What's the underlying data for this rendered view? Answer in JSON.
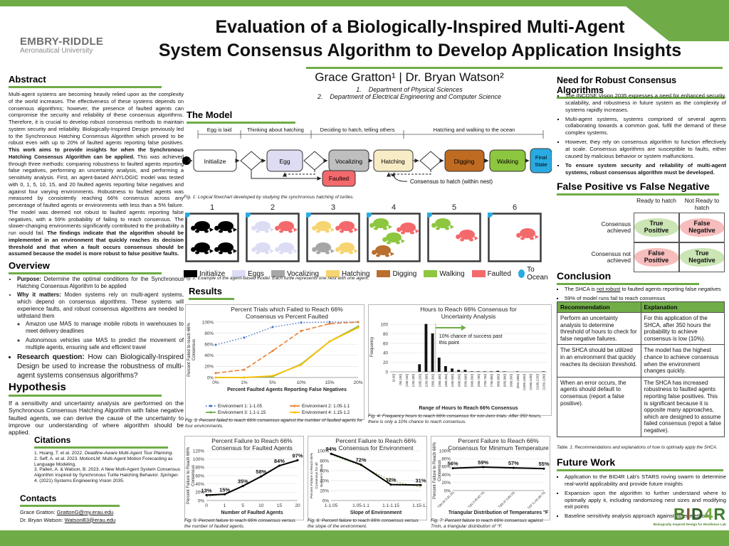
{
  "colors": {
    "accent_green": "#6fac47",
    "table_header_green": "#70ad47",
    "faulted_red": "#f4696b",
    "ocean_blue": "#29abe2"
  },
  "poster": {
    "org_line1": "EMBRY-RIDDLE",
    "org_line2": "Aeronautical University",
    "title_line1": "Evaluation of a Biologically-Inspired Multi-Agent",
    "title_line2": "System Consensus Algorithm to Develop Application Insights",
    "authors": "Grace Gratton¹ | Dr. Bryan Watson²",
    "affil1": "1.    Department of Physical Sciences",
    "affil2": "2.    Department of Electrical Engineering and Computer Science"
  },
  "abstract": {
    "heading": "Abstract",
    "p1": "Multi-agent systems are becoming heavily relied upon as the complexity of the world increases. The effectiveness of these systems depends on consensus algorithms; however, the presence of faulted agents can compromise the security and reliability of these consensus algorithms. Therefore, it is crucial to develop robust consensus methods to maintain system security and reliability. Biologically-Inspired Design previously led to the Synchronous Hatching Consensus Algorithm which proved to be robust even with up to 20% of faulted agents reporting false positives. ",
    "b1": "This work aims to provide insights for when the Synchronous Hatching Consensus Algorithm can be applied.",
    "p2": " This was achieved through three methods: comparing robustness to faulted agents reporting false negatives, performing an uncertainty analysis, and performing a sensitivity analysis. First, an agent-based ANYLOGIC model was tested with 0, 1, 5, 10, 15, and 20 faulted agents reporting false negatives and against four varying environments. Robustness to faulted agents was measured by consistently reaching 66% consensus across any percentage of faulted agents or environments with less than a 5% failure. The model was deemed not robust to faulted agents reporting false negatives, with a 59% probability of failing to reach consensus. The slower-changing environments significantly contributed to the probability a run would fail. ",
    "b2": "The findings indicate that the algorithm should be implemented in an environment that quickly reaches its decision threshold and that when a fault occurs consensus should be assumed because the model is more robust to false positive faults."
  },
  "overview": {
    "heading": "Overview",
    "bullets": [
      {
        "bold": "Purpose:",
        "rest": " Determine the optimal conditions for the Synchronous Hatching Consensus Algorithm to be applied"
      },
      {
        "bold": "Why it matters:",
        "rest": " Moden systems rely on multi-agent systems, which depend on consensus algorithms. These systems will experience faults, and robust consensus algorithms are needed to withstand them"
      }
    ],
    "subbullets": [
      "Amazon use MAS to manage mobile robots in warehouses to meet delivery deadlines",
      "Autonomous vehicles use MAS to predict the movement of multiple agents, ensuring safe and efficient travel"
    ],
    "research_bold": "Research question:",
    "research_rest": " How can Biologically-Inspired Design be used to increase the robustness of multi-agent systems consensus algorithms?"
  },
  "hypothesis": {
    "heading": "Hypothesis",
    "body": "If a sensitivity and uncertainty analysis are performed on the Synchronous Consensus Hatching Algorithm with false negative faulted agents, we can derive the cause of the uncertainty to improve our understanding of where algorithm should be applied."
  },
  "citations": {
    "heading": "Citations",
    "items": [
      {
        "pre": "1. Huang, T. et al. 2022. ",
        "it": "Deadline-Aware Multi-Agent Tour Planning."
      },
      {
        "pre": "2. Seff, A. et al. 2023. MotionLM: Multi-Agent Motion Forecasting as Language Modeling.",
        "it": ""
      },
      {
        "pre": "3. Pallen, A. & Watson, B. 2023. A New Multi-Agent System Consensus Algorithm Inspired by Synchronous Turtle Hatching Behavior. ",
        "it": "Springer."
      },
      {
        "pre": "4. (2021) Systems Engineering Vision 2035.",
        "it": ""
      }
    ]
  },
  "contacts": {
    "heading": "Contacts",
    "label1": "Grace Gratton: ",
    "email1": "GrattonG@my.erau.edu",
    "label2": "Dr. Bryan Watson: ",
    "email2": "WatsonB3@erau.edu"
  },
  "model": {
    "heading": "The Model",
    "phases": [
      "Egg is laid",
      "Thinking about hatching",
      "Deciding to hatch, telling others",
      "Hatching and walking to the ocean"
    ],
    "states": {
      "initialize": "Initialize",
      "egg": "Egg",
      "vocalizing": "Vocalizing",
      "hatching": "Hatching",
      "digging": "Digging",
      "walking": "Walking",
      "final1": "Final",
      "final2": "State",
      "faulted": "Faulted"
    },
    "note": "Consensus to hatch (within nest)",
    "caption": "Fig. 1: Logical flowchart developed by studying the synchronous hatching of turtles."
  },
  "fig2": {
    "panels": [
      {
        "label": "1",
        "turtles": [
          [
            "initialize",
            8,
            10
          ],
          [
            "initialize",
            41,
            10
          ],
          [
            "initialize",
            8,
            40
          ],
          [
            "initialize",
            41,
            40
          ]
        ]
      },
      {
        "label": "2",
        "turtles": [
          [
            "eggs",
            8,
            10
          ],
          [
            "faulted",
            41,
            10
          ],
          [
            "eggs",
            8,
            40
          ],
          [
            "eggs",
            41,
            40
          ]
        ]
      },
      {
        "label": "3",
        "turtles": [
          [
            "hatching",
            8,
            10
          ],
          [
            "faulted",
            41,
            10
          ],
          [
            "vocalizing",
            8,
            40
          ],
          [
            "hatching",
            41,
            40
          ]
        ]
      },
      {
        "label": "4",
        "turtles": [
          [
            "walking",
            4,
            6
          ],
          [
            "faulted",
            42,
            12
          ],
          [
            "walking",
            22,
            26
          ],
          [
            "digging",
            7,
            44
          ]
        ]
      },
      {
        "label": "5",
        "turtles": [
          [
            "walking",
            6,
            6
          ],
          [
            "faulted",
            40,
            22
          ]
        ]
      },
      {
        "label": "6",
        "turtles": [
          [
            "faulted",
            40,
            20
          ]
        ]
      }
    ],
    "legend": [
      {
        "label": "Initialize",
        "color": "#000000"
      },
      {
        "label": "Eggs",
        "color": "#dcdcf5"
      },
      {
        "label": "Vocalizing",
        "color": "#a6a6a6"
      },
      {
        "label": "Hatching",
        "color": "#f6d470"
      },
      {
        "label": "Digging",
        "color": "#b96f2d"
      },
      {
        "label": "Walking",
        "color": "#8dc63f"
      },
      {
        "label": "Faulted",
        "color": "#f4696b"
      },
      {
        "label": "To Ocean",
        "color": "#29abe2",
        "shape": "circle"
      }
    ],
    "caption": "Fig. 2: Example of the agent-based model. Each turtle represents one nest with one agent."
  },
  "results_heading": "Results",
  "chart_data": [
    {
      "id": "fig3",
      "type": "line",
      "title": [
        "Percent Trials which Failed to Reach 66%",
        "Consensus vs Percent Faulted"
      ],
      "categories": [
        "0%",
        "1%",
        "5%",
        "10%",
        "15%",
        "20%"
      ],
      "series": [
        {
          "name": "Environment 1: 1-1.05",
          "color": "#4472c4",
          "dash": "1.5,2.5",
          "marker": true,
          "width": 1.4,
          "values": [
            59,
            72,
            91,
            99,
            100,
            100
          ]
        },
        {
          "name": "Environment 2: 1.05-1.1",
          "color": "#ed7d31",
          "dash": "6,3",
          "marker": true,
          "width": 1.6,
          "values": [
            8,
            14,
            48,
            84,
            97,
            100
          ]
        },
        {
          "name": "Environment 3: 1.1-1.15",
          "color": "#70ad47",
          "marker": true,
          "width": 1.8,
          "values": [
            0,
            0,
            2,
            24,
            65,
            92
          ]
        },
        {
          "name": "Environment 4: 1.15-1.2",
          "color": "#ffc000",
          "marker": true,
          "width": 1.8,
          "values": [
            0,
            0,
            3,
            23,
            65,
            90
          ]
        }
      ],
      "xlabel": "Percent Faulted Agents Reporting False Negatives",
      "ylabel": [
        "Percent Failed to reach 66%",
        "Consensus"
      ],
      "ylim": [
        0,
        100
      ],
      "yticks": [
        0,
        20,
        40,
        60,
        80,
        100
      ],
      "ysuffix": "%",
      "legend": true,
      "caption": "Fig. 3: Percent failed to reach 66% consensus against the number of faulted agents for four environments."
    },
    {
      "id": "fig4",
      "type": "bar",
      "title": [
        "Hours to Reach 66% Consensus for",
        "Uncertainty Analysis"
      ],
      "categories": [
        "(0,50]",
        "(50,100]",
        "(100,150]",
        "(150,200]",
        "(200,250]",
        "(250,300]",
        "(300,350]",
        "(350,400]",
        "(400,450]",
        "(450,500]",
        "(500,550]",
        "(550,600]",
        "(600,650]",
        "(650,700]",
        "(700,750]",
        "(750,800]",
        "(800,850]",
        "(850,900]",
        "(900,950]",
        "(950,1000]",
        "(1000,1050]",
        "(1050,1100]",
        "(1100,1150]",
        "(1150,1200]"
      ],
      "values": [
        0,
        0,
        0,
        0,
        16,
        101,
        81,
        30,
        12,
        7,
        4,
        4,
        1,
        1,
        1,
        1,
        2,
        1,
        0,
        1,
        0,
        0,
        0,
        1
      ],
      "xlabel": "Range of Hours to Reach 66% Consensus",
      "ylabel": [
        "Frequency"
      ],
      "ylim": [
        0,
        105
      ],
      "yticks": [
        0,
        20,
        40,
        60,
        80,
        100
      ],
      "xrot": -90,
      "xfs": 4.3,
      "annotation": {
        "frac": 0.29,
        "lines": [
          "10% chance of success past",
          "this point"
        ]
      },
      "caption": "Fig. 4: Frequency hours to reach 66% consensus for non-zero trials. After 350 hours, there is only a 10% chance to reach consensus."
    },
    {
      "id": "fig5",
      "type": "line",
      "title": [
        "Percent Failure to Reach 66%",
        "Consensus for Faulted Agents"
      ],
      "categories": [
        "0",
        "1",
        "5",
        "10",
        "15",
        "20"
      ],
      "series": [
        {
          "name": "trendline",
          "color": "#70ad47",
          "dash": "2,2",
          "width": 1,
          "values": [
            9,
            16,
            34,
            57,
            84,
            97
          ]
        },
        {
          "name": "percent failure",
          "color": "#000000",
          "width": 2,
          "marker": true,
          "labels": true,
          "values": [
            13,
            15,
            35,
            58,
            84,
            97
          ]
        }
      ],
      "xlabel": "Number of Faulted Agents",
      "ylabel": [
        "Percent Failure to Reach 66%",
        "Consensus"
      ],
      "ylim": [
        0,
        120
      ],
      "yticks": [
        0,
        20,
        40,
        60,
        80,
        100,
        120
      ],
      "ysuffix": "%",
      "caption": "Fig. 5: Percent failure to reach 66% consensus versus the number of faulted agents."
    },
    {
      "id": "fig6",
      "type": "line",
      "title": [
        "Percent Failure to Reach 66%",
        "Consensus for Environment"
      ],
      "categories": [
        "1-1.05",
        "1.05-1.1",
        "1.1-1.15",
        "1.15-1.2"
      ],
      "series": [
        {
          "name": "trendline",
          "color": "#70ad47",
          "dash": "2,2",
          "width": 1,
          "values": [
            92,
            70,
            40,
            27
          ]
        },
        {
          "name": "percent failure",
          "color": "#000000",
          "width": 2,
          "marker": true,
          "labels": true,
          "values": [
            94,
            72,
            32,
            31
          ]
        }
      ],
      "xlabel": "Slope of Environment",
      "ylabel": [
        "Percent Failure to Reach 66%",
        "Consensus for all",
        "Non-zero Trials"
      ],
      "ylfs": 4.8,
      "ylim": [
        0,
        100
      ],
      "yticks": [
        0,
        20,
        40,
        60,
        80,
        100
      ],
      "ysuffix": "%",
      "caption": "Fig. 6: Percent failure to reach 66% consensus versus the slope of the environment."
    },
    {
      "id": "fig7",
      "type": "line",
      "title": [
        "Percent Failure to Reach 66%",
        "Consensus for Minimum Temperature"
      ],
      "categories": [
        "T(80,92.5,81.25)",
        "T(82.5,95,83.75)",
        "T(85,97.5,86.25)",
        "T(87.5,100,88.75)"
      ],
      "series": [
        {
          "name": "trendline",
          "color": "#70ad47",
          "dash": "2,2",
          "width": 1,
          "values": [
            57,
            58,
            56,
            55
          ]
        },
        {
          "name": "percent failure",
          "color": "#000000",
          "width": 2,
          "marker": true,
          "labels": true,
          "values": [
            56,
            59,
            57,
            55
          ]
        }
      ],
      "xlabel": "Triangular Distribution of Temperatures °F",
      "ylabel": [
        "Percent Failure to Reach 66%",
        "Consensus"
      ],
      "ylim": [
        0,
        100
      ],
      "yticks": [
        0,
        20,
        40,
        60,
        80,
        100
      ],
      "ysuffix": "%",
      "xrot": -45,
      "xfs": 4.2,
      "caption": "Fig. 7: Percent failure to reach 66% consensus against Tmin, a triangular distribution of °F."
    }
  ],
  "need": {
    "heading": "Need for Robust Consensus Algorithms",
    "bullets": [
      "The INCOSE Vision 2035 expresses a need for enhanced security, scalability, and robustness in future system as the complexity of systems rapidly increases.",
      "Multi-agent systems, systems comprised of several agents collaborating towards a common goal, fulfil the demand of these complex systems.",
      "However, they rely on consensus algorithm to function effectively at scale. Consensus algorithms are susceptible to faults, either caused by malicious behavior or system malfunctions."
    ],
    "bullet_bold": "To ensure system security and reliability of multi-agent systems, robust consensus algorithm must be developed."
  },
  "fpfn": {
    "heading": "False Positive vs False Negative",
    "col1": "Ready to hatch",
    "col2": "Not Ready to hatch",
    "row1": "Consensus achieved",
    "row2": "Consensus not achieved",
    "tp": "True Positive",
    "fn": "False Negative",
    "fp": "False Positive",
    "tn": "True Negative"
  },
  "conclusion": {
    "heading": "Conclusion",
    "b1_pre": "The SHCA is ",
    "b1_u": "not robust",
    "b1_post": " to faulted agents reporting false negatives",
    "b2": "59% of model runs fail to reach consensus",
    "table": {
      "h1": "Recommendation",
      "h2": "Explanation",
      "rows": [
        {
          "rec": "Perform an uncertainty analysis to determine threshold of hours to check for false negative failures.",
          "exp": "For this application of the SHCA, after 350 hours the probability to achieve consensus is low (10%)."
        },
        {
          "rec": "The SHCA should be utilized in an environment that quickly reaches its decision threshold.",
          "exp": "The model has the highest chance to achieve consensus when the environment changes quickly."
        },
        {
          "rec": "When an error occurs, the agents should default to consensus (report a false positive).",
          "exp": "The SHCA has increased robustness to faulted agents reporting false positives. This is significant because it is opposite many approaches, which are designed to assume failed consensus (repot a false negative)."
        }
      ]
    },
    "table_caption": "Table. 1: Recommendations and explanations of how to optimally apply the SHCA."
  },
  "future": {
    "heading": "Future Work",
    "bullets": [
      "Application to the BID4R Lab's STARS roving swarm to determine real-world applicability and provide future insights",
      "Expansion upon the algorithm to further understand where to optimally apply it, including randomizing nest sizes and modifying exit points",
      "Baseline sensitivity analysis approach against other methods"
    ],
    "logo": "BID4R",
    "logo_tagline": "Biologically Inspired Design for Resilience Lab"
  }
}
